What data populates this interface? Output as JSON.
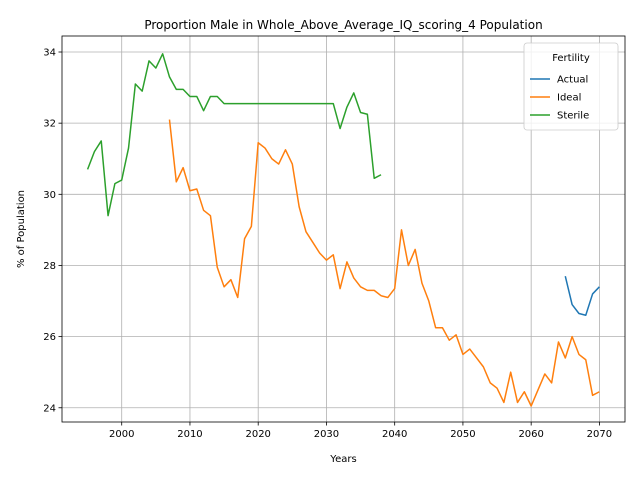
{
  "chart_data": {
    "type": "line",
    "title": "Proportion Male in Whole_Above_Average_IQ_scoring_4 Population",
    "xlabel": "Years",
    "ylabel": "% of Population",
    "xlim": [
      1991.25,
      2073.75
    ],
    "ylim": [
      23.6,
      34.45
    ],
    "xticks": [
      2000,
      2010,
      2020,
      2030,
      2040,
      2050,
      2060,
      2070
    ],
    "yticks": [
      24,
      26,
      28,
      30,
      32,
      34
    ],
    "grid": true,
    "legend": {
      "title": "Fertility",
      "placement": "top-right"
    },
    "series": [
      {
        "name": "Actual",
        "color": "#1f77b4",
        "x": [
          2065,
          2066,
          2067,
          2068,
          2069,
          2070
        ],
        "y": [
          27.7,
          26.9,
          26.65,
          26.6,
          27.2,
          27.4
        ]
      },
      {
        "name": "Ideal",
        "color": "#ff7f0e",
        "x": [
          2007,
          2008,
          2009,
          2010,
          2011,
          2012,
          2013,
          2014,
          2015,
          2016,
          2017,
          2018,
          2019,
          2020,
          2021,
          2022,
          2023,
          2024,
          2025,
          2026,
          2027,
          2028,
          2029,
          2030,
          2031,
          2032,
          2033,
          2034,
          2035,
          2036,
          2037,
          2038,
          2039,
          2040,
          2041,
          2042,
          2043,
          2044,
          2045,
          2046,
          2047,
          2048,
          2049,
          2050,
          2051,
          2052,
          2053,
          2054,
          2055,
          2056,
          2057,
          2058,
          2059,
          2060,
          2061,
          2062,
          2063,
          2064,
          2065,
          2066,
          2067,
          2068,
          2069,
          2070
        ],
        "y": [
          32.1,
          30.35,
          30.75,
          30.1,
          30.15,
          29.55,
          29.4,
          27.95,
          27.4,
          27.6,
          27.1,
          28.75,
          29.1,
          31.45,
          31.3,
          31.0,
          30.85,
          31.25,
          30.85,
          29.65,
          28.95,
          28.65,
          28.35,
          28.15,
          28.3,
          27.35,
          28.1,
          27.65,
          27.4,
          27.3,
          27.3,
          27.15,
          27.1,
          27.35,
          29.0,
          28.0,
          28.45,
          27.5,
          27.0,
          26.25,
          26.25,
          25.9,
          26.05,
          25.5,
          25.65,
          25.4,
          25.15,
          24.7,
          24.55,
          24.15,
          25.0,
          24.15,
          24.45,
          24.05,
          24.5,
          24.95,
          24.7,
          25.85,
          25.4,
          26.0,
          25.5,
          25.35,
          24.35,
          24.45
        ]
      },
      {
        "name": "Sterile",
        "color": "#2ca02c",
        "x": [
          1995,
          1996,
          1997,
          1998,
          1999,
          2000,
          2001,
          2002,
          2003,
          2004,
          2005,
          2006,
          2007,
          2008,
          2009,
          2010,
          2011,
          2012,
          2013,
          2014,
          2015,
          2016,
          2017,
          2018,
          2019,
          2020,
          2021,
          2022,
          2023,
          2024,
          2025,
          2026,
          2027,
          2028,
          2029,
          2030,
          2031,
          2032,
          2033,
          2034,
          2035,
          2036,
          2037,
          2038
        ],
        "y": [
          30.7,
          31.2,
          31.5,
          29.4,
          30.3,
          30.4,
          31.3,
          33.1,
          32.9,
          33.75,
          33.55,
          33.95,
          33.3,
          32.95,
          32.95,
          32.75,
          32.75,
          32.35,
          32.75,
          32.75,
          32.55,
          32.55,
          32.55,
          32.55,
          32.55,
          32.55,
          32.55,
          32.55,
          32.55,
          32.55,
          32.55,
          32.55,
          32.55,
          32.55,
          32.55,
          32.55,
          32.55,
          31.85,
          32.45,
          32.85,
          32.3,
          32.25,
          30.45,
          30.55
        ]
      }
    ]
  }
}
